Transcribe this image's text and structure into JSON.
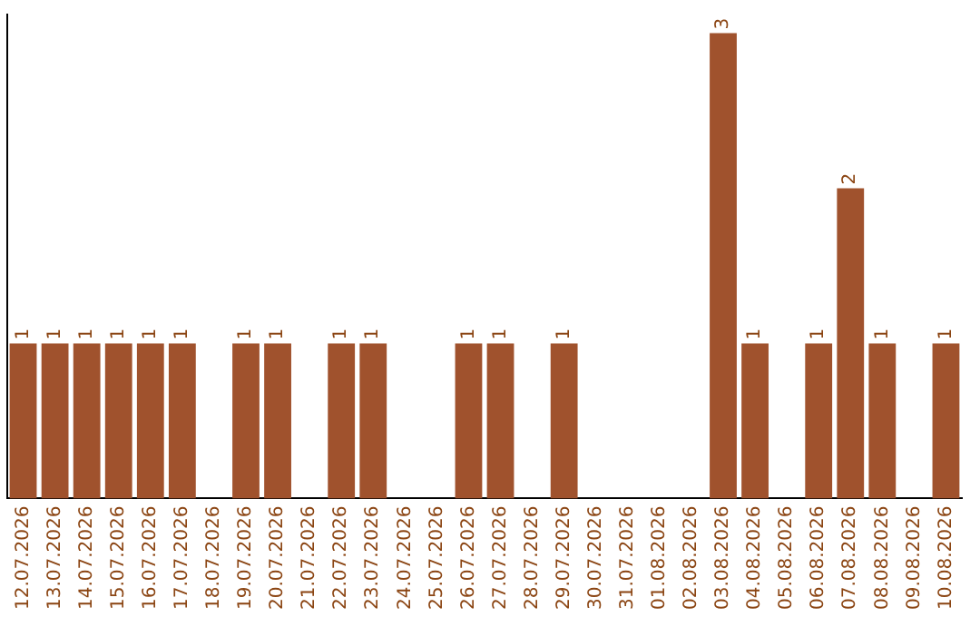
{
  "chart_data": {
    "type": "bar",
    "categories": [
      "12.07.2026",
      "13.07.2026",
      "14.07.2026",
      "15.07.2026",
      "16.07.2026",
      "17.07.2026",
      "18.07.2026",
      "19.07.2026",
      "20.07.2026",
      "21.07.2026",
      "22.07.2026",
      "23.07.2026",
      "24.07.2026",
      "25.07.2026",
      "26.07.2026",
      "27.07.2026",
      "28.07.2026",
      "29.07.2026",
      "30.07.2026",
      "31.07.2026",
      "01.08.2026",
      "02.08.2026",
      "03.08.2026",
      "04.08.2026",
      "05.08.2026",
      "06.08.2026",
      "07.08.2026",
      "08.08.2026",
      "09.08.2026",
      "10.08.2026"
    ],
    "values": [
      1,
      1,
      1,
      1,
      1,
      1,
      0,
      1,
      1,
      0,
      1,
      1,
      0,
      0,
      1,
      1,
      0,
      1,
      0,
      0,
      0,
      0,
      3,
      1,
      0,
      1,
      2,
      1,
      0,
      1
    ],
    "value_labels": [
      "1",
      "1",
      "1",
      "1",
      "1",
      "1",
      null,
      "1",
      "1",
      null,
      "1",
      "1",
      null,
      null,
      "1",
      "1",
      null,
      "1",
      null,
      null,
      null,
      null,
      "3",
      "1",
      null,
      "1",
      "2",
      "1",
      null,
      "1"
    ],
    "color": "#a0522d",
    "grid": false,
    "legend": false,
    "tick_labels": "x"
  }
}
